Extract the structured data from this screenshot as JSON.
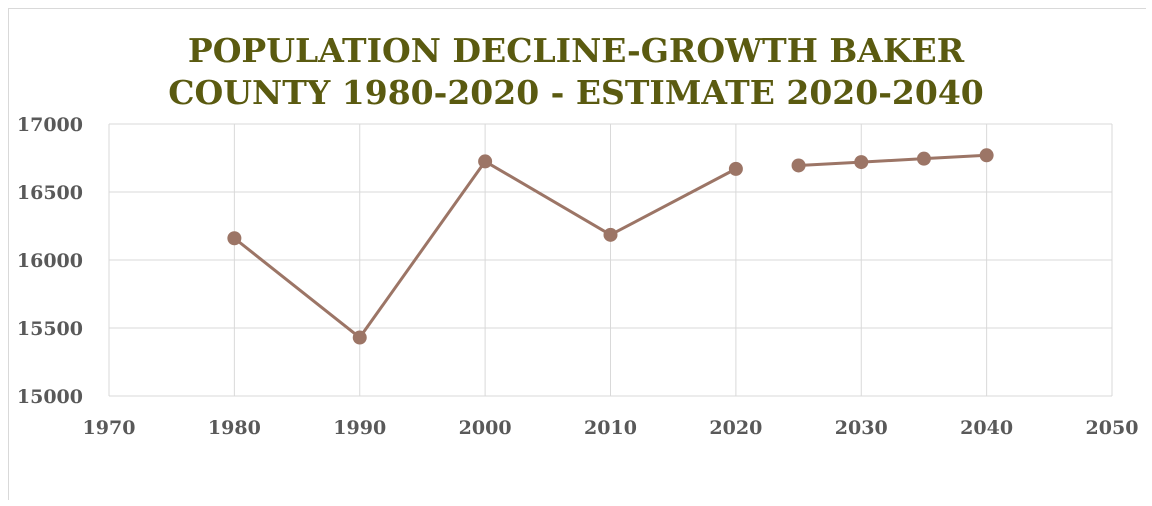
{
  "chart_data": {
    "type": "scatter",
    "title_lines": [
      "POPULATION DECLINE-GROWTH BAKER",
      "COUNTY 1980-2020 - ESTIMATE 2020-2040"
    ],
    "xlabel": "",
    "ylabel": "",
    "xlim": [
      1970,
      2050
    ],
    "ylim": [
      15000,
      17000
    ],
    "x_ticks": [
      1970,
      1980,
      1990,
      2000,
      2010,
      2020,
      2030,
      2040,
      2050
    ],
    "y_ticks": [
      15000,
      15500,
      16000,
      16500,
      17000
    ],
    "grid": true,
    "legend": "none",
    "series": [
      {
        "x": [
          1980,
          1990,
          2000,
          2010,
          2020
        ],
        "y": [
          16160,
          15430,
          16725,
          16185,
          16670
        ]
      },
      {
        "x": [
          2025,
          2030,
          2035,
          2040
        ],
        "y": [
          16695,
          16720,
          16745,
          16770
        ]
      }
    ],
    "color": "#9c7566"
  }
}
